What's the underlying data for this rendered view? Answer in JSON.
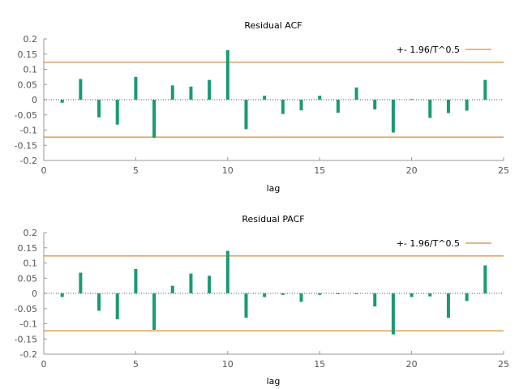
{
  "colors": {
    "bar": "#1a9a74",
    "band": "#c8720e",
    "axis": "#999999",
    "zero": "#555555"
  },
  "chart_data": [
    {
      "type": "bar",
      "title": "Residual ACF",
      "xlabel": "lag",
      "ylabel": "",
      "xlim": [
        0,
        25
      ],
      "ylim": [
        -0.2,
        0.2
      ],
      "xticks": [
        "0",
        "5",
        "10",
        "15",
        "20",
        "25"
      ],
      "yticks": [
        "0.2",
        "0.15",
        "0.1",
        "0.05",
        "0",
        "-0.05",
        "-0.1",
        "-0.15",
        "-0.2"
      ],
      "band": 0.123,
      "legend": "+- 1.96/T^0.5",
      "legend_position": "top-right",
      "x": [
        1,
        2,
        3,
        4,
        5,
        6,
        7,
        8,
        9,
        10,
        11,
        12,
        13,
        14,
        15,
        16,
        17,
        18,
        19,
        20,
        21,
        22,
        23,
        24
      ],
      "values": [
        -0.01,
        0.068,
        -0.058,
        -0.082,
        0.075,
        -0.125,
        0.047,
        0.043,
        0.065,
        0.163,
        -0.097,
        0.013,
        -0.047,
        -0.035,
        0.013,
        -0.043,
        0.04,
        -0.032,
        -0.108,
        0.002,
        -0.06,
        -0.044,
        -0.036,
        0.065
      ]
    },
    {
      "type": "bar",
      "title": "Residual PACF",
      "xlabel": "lag",
      "ylabel": "",
      "xlim": [
        0,
        25
      ],
      "ylim": [
        -0.2,
        0.2
      ],
      "xticks": [
        "0",
        "5",
        "10",
        "15",
        "20",
        "25"
      ],
      "yticks": [
        "0.2",
        "0.15",
        "0.1",
        "0.05",
        "0",
        "-0.05",
        "-0.1",
        "-0.15",
        "-0.2"
      ],
      "band": 0.123,
      "legend": "+- 1.96/T^0.5",
      "legend_position": "top-right",
      "x": [
        1,
        2,
        3,
        4,
        5,
        6,
        7,
        8,
        9,
        10,
        11,
        12,
        13,
        14,
        15,
        16,
        17,
        18,
        19,
        20,
        21,
        22,
        23,
        24
      ],
      "values": [
        -0.012,
        0.068,
        -0.057,
        -0.085,
        0.08,
        -0.12,
        0.025,
        0.065,
        0.058,
        0.14,
        -0.08,
        -0.012,
        -0.005,
        -0.028,
        -0.005,
        -0.002,
        -0.002,
        -0.043,
        -0.135,
        -0.012,
        -0.01,
        -0.08,
        -0.025,
        0.092
      ]
    }
  ]
}
